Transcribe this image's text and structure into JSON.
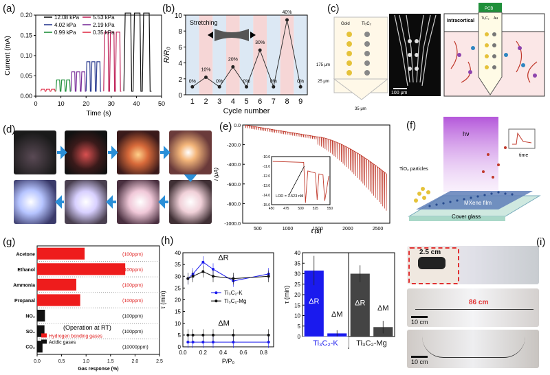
{
  "figure": {
    "panel_labels": [
      "(a)",
      "(b)",
      "(c)",
      "(d)",
      "(e)",
      "(f)",
      "(g)",
      "(h)",
      "(i)"
    ]
  },
  "panel_a": {
    "xlabel": "Time (s)",
    "ylabel": "Current (mA)",
    "legend": [
      "12.08 kPa",
      "4.02 kPa",
      "0.99 kPa",
      "5.53 kPa",
      "2.19 kPa",
      "0.35 kPa"
    ],
    "colors": [
      "#111111",
      "#2a3b8f",
      "#1f8f3a",
      "#c0245a",
      "#7a2f9a",
      "#e0304a"
    ]
  },
  "panel_b": {
    "title": "Stretching",
    "xlabel": "Cycle number",
    "ylabel": "R/R₀",
    "point_labels": [
      "0%",
      "10%",
      "0%",
      "20%",
      "0%",
      "30%",
      "0%",
      "40%",
      "0%"
    ]
  },
  "panel_c": {
    "labels": [
      "Gold",
      "Ti₃C₂",
      "175 μm",
      "25 μm",
      "35 μm",
      "100 μm",
      "Intracortical",
      "PCB",
      "Ti₃C₂",
      "Au"
    ]
  },
  "panel_e": {
    "xlabel": "t (s)",
    "ylabel": "i (μA)",
    "inset_annotation": "LOD = 3.523 nM"
  },
  "panel_f": {
    "labels": [
      "hν",
      "TiO₂ particles",
      "MXene film",
      "Cover glass",
      "time"
    ]
  },
  "panel_g": {
    "xlabel": "Gas response (%)",
    "note": "(Operation at RT)",
    "legend": [
      "Hydrogen bonding gases",
      "Acidic gases"
    ],
    "colors": {
      "hydrogen": "#ee1c1c",
      "acidic": "#111111"
    }
  },
  "panel_h": {
    "left_xlabel": "P/P₀",
    "left_ylabel": "τ (min)",
    "annotations": [
      "ΔR",
      "ΔM"
    ],
    "legend": [
      "Ti₃C₂-K",
      "Ti₃C₂-Mg"
    ],
    "right_ylabel": "τ (min)",
    "right_groups": [
      "Ti₃C₂-K",
      "Ti₃C₂-Mg"
    ],
    "right_bar_labels": [
      "ΔR",
      "ΔM",
      "ΔR",
      "ΔM"
    ],
    "colors": {
      "k": "#1a1aee",
      "mg": "#444444"
    }
  },
  "panel_i": {
    "labels": [
      "2.5 cm",
      "86 cm",
      "10 cm",
      "10 cm"
    ]
  },
  "chart_data": [
    {
      "panel": "a",
      "type": "line",
      "xlabel": "Time (s)",
      "ylabel": "Current (mA)",
      "xlim": [
        0,
        50
      ],
      "ylim": [
        0,
        0.2
      ],
      "x_ticks": [
        0,
        10,
        20,
        30,
        40,
        50
      ],
      "y_ticks": [
        0.0,
        0.05,
        0.1,
        0.15,
        0.2
      ],
      "series": [
        {
          "name": "0.35 kPa",
          "x_range": [
            2,
            8
          ],
          "peak": 0.017
        },
        {
          "name": "0.99 kPa",
          "x_range": [
            8,
            14
          ],
          "peak": 0.04
        },
        {
          "name": "2.19 kPa",
          "x_range": [
            14,
            20
          ],
          "peak": 0.06
        },
        {
          "name": "4.02 kPa",
          "x_range": [
            20,
            26
          ],
          "peak": 0.085
        },
        {
          "name": "5.53 kPa",
          "x_range": [
            27,
            34
          ],
          "peak": 0.158
        },
        {
          "name": "12.08 kPa",
          "x_range": [
            35,
            46
          ],
          "peak": 0.205
        }
      ]
    },
    {
      "panel": "b",
      "type": "line",
      "xlabel": "Cycle number",
      "ylabel": "R/R₀",
      "xlim": [
        0.5,
        9.5
      ],
      "ylim": [
        0,
        10
      ],
      "x": [
        1,
        2,
        3,
        4,
        5,
        6,
        7,
        8,
        9
      ],
      "values": [
        1,
        2.2,
        1,
        3.5,
        1,
        5.6,
        1,
        9.4,
        1
      ],
      "y_ticks": [
        0,
        2,
        4,
        6,
        8,
        10
      ]
    },
    {
      "panel": "e",
      "type": "line",
      "xlabel": "t (s)",
      "ylabel": "i (μA)",
      "xlim": [
        250,
        2700
      ],
      "ylim": [
        -1000,
        0
      ],
      "x_ticks": [
        500,
        1000,
        1500,
        2000,
        2500
      ],
      "y_ticks": [
        0,
        -200,
        -400,
        -600,
        -800,
        -1000
      ],
      "inset": {
        "xlim": [
          450,
          550
        ],
        "ylim": [
          -15,
          -10
        ],
        "x_ticks": [
          450,
          475,
          500,
          525,
          550
        ],
        "y_ticks": [
          -10,
          -11,
          -12,
          -13,
          -14,
          -15
        ]
      }
    },
    {
      "panel": "g",
      "type": "bar",
      "xlabel": "Gas response (%)",
      "xlim": [
        0,
        2.5
      ],
      "x_ticks": [
        0.0,
        0.5,
        1.0,
        1.5,
        2.0,
        2.5
      ],
      "categories": [
        "Acetone",
        "Ethanol",
        "Ammonia",
        "Propanal",
        "NO₂",
        "SO₂",
        "CO₂"
      ],
      "values": [
        0.97,
        1.8,
        0.8,
        0.88,
        0.16,
        0.15,
        0.11
      ],
      "groups": [
        "hydrogen",
        "hydrogen",
        "hydrogen",
        "hydrogen",
        "acidic",
        "acidic",
        "acidic"
      ],
      "concentrations": [
        "(100ppm)",
        "(100ppm)",
        "(100ppm)",
        "(100ppm)",
        "(100ppm)",
        "(100ppm)",
        "(10000ppm)"
      ]
    },
    {
      "panel": "h-left",
      "type": "line",
      "xlabel": "P/P₀",
      "ylabel": "τ (min)",
      "xlim": [
        0,
        0.9
      ],
      "ylim": [
        0,
        40
      ],
      "x_ticks": [
        0.0,
        0.2,
        0.4,
        0.6,
        0.8
      ],
      "y_ticks": [
        0,
        5,
        10,
        15,
        20,
        25,
        30,
        35,
        40
      ],
      "x": [
        0.05,
        0.1,
        0.2,
        0.3,
        0.5,
        0.85
      ],
      "series": [
        {
          "name": "Ti₃C₂-K ΔR",
          "values": [
            29,
            31,
            36,
            33,
            28,
            31
          ]
        },
        {
          "name": "Ti₃C₂-Mg ΔR",
          "values": [
            29,
            30,
            32,
            30,
            29,
            30
          ]
        },
        {
          "name": "Ti₃C₂-K ΔM",
          "values": [
            2,
            2,
            2,
            2,
            2,
            2
          ]
        },
        {
          "name": "Ti₃C₂-Mg ΔM",
          "values": [
            5,
            5,
            5,
            5,
            5,
            5
          ]
        }
      ]
    },
    {
      "panel": "h-right",
      "type": "bar",
      "ylabel": "τ (min)",
      "ylim": [
        0,
        40
      ],
      "y_ticks": [
        0,
        5,
        10,
        15,
        20,
        25,
        30,
        35,
        40
      ],
      "categories": [
        "ΔR",
        "ΔM",
        "ΔR",
        "ΔM"
      ],
      "values": [
        31.5,
        1.5,
        30,
        4.5
      ],
      "errors": [
        7,
        1.5,
        4,
        3
      ],
      "groups": [
        "Ti₃C₂-K",
        "Ti₃C₂-K",
        "Ti₃C₂-Mg",
        "Ti₃C₂-Mg"
      ]
    }
  ]
}
